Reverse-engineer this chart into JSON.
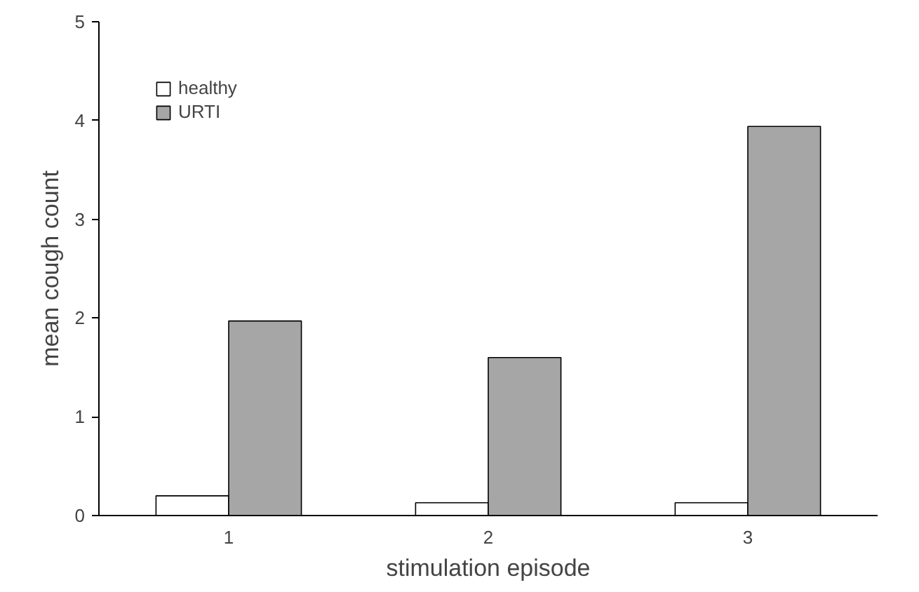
{
  "chart_data": {
    "type": "bar",
    "xlabel": "stimulation episode",
    "ylabel": "mean cough count",
    "categories": [
      "1",
      "2",
      "3"
    ],
    "series": [
      {
        "name": "healthy",
        "color": "#ffffff",
        "values": [
          0.2,
          0.13,
          0.13
        ]
      },
      {
        "name": "URTI",
        "color": "#a6a6a6",
        "values": [
          1.97,
          1.6,
          3.94
        ]
      }
    ],
    "ylim": [
      0,
      5
    ],
    "yticks": [
      0,
      1,
      2,
      3,
      4,
      5
    ],
    "grid": false,
    "legend": "top left"
  }
}
